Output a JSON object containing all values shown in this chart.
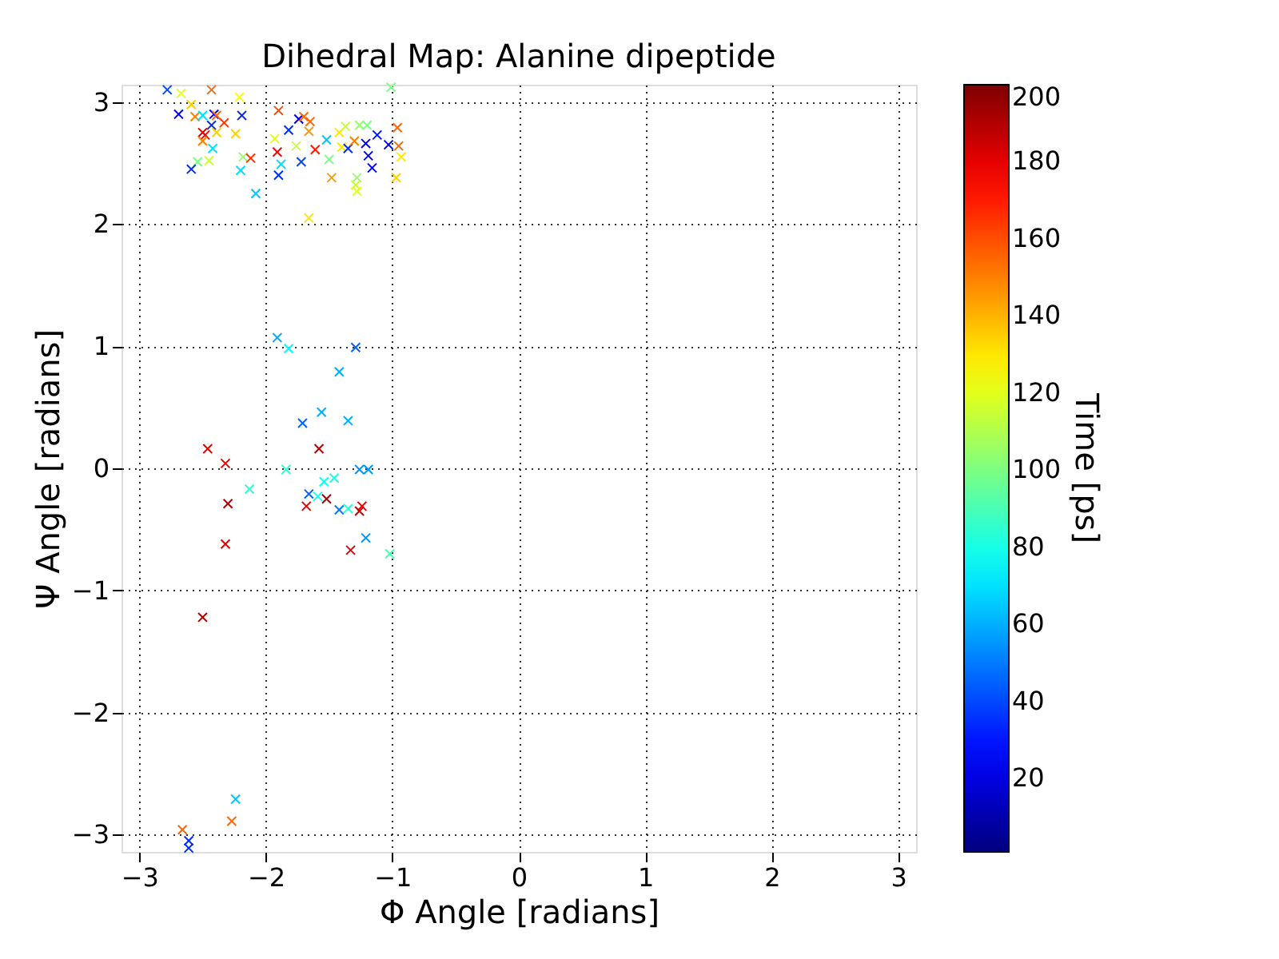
{
  "chart_data": {
    "type": "scatter",
    "title": "Dihedral Map: Alanine dipeptide",
    "xlabel": "Φ Angle [radians]",
    "ylabel": "Ψ Angle [radians]",
    "clabel": "Time [ps]",
    "x": [
      -2.78,
      -2.67,
      -2.43,
      -2.21,
      -1.01,
      -2.69,
      -2.59,
      -2.56,
      -2.5,
      -2.41,
      -2.39,
      -2.43,
      -2.33,
      -2.19,
      -2.5,
      -2.48,
      -2.39,
      -2.5,
      -2.24,
      -2.42,
      -2.54,
      -2.45,
      -2.59,
      -2.18,
      -2.12,
      -2.2,
      -2.08,
      -1.9,
      -1.82,
      -1.74,
      -1.7,
      -1.65,
      -1.66,
      -1.93,
      -1.76,
      -1.91,
      -1.88,
      -1.9,
      -1.72,
      -1.61,
      -1.52,
      -1.5,
      -1.48,
      -1.42,
      -1.37,
      -1.4,
      -1.35,
      -1.3,
      -1.26,
      -1.2,
      -1.21,
      -1.19,
      -1.12,
      -1.16,
      -1.28,
      -1.29,
      -1.28,
      -1.03,
      -0.96,
      -0.95,
      -0.93,
      -0.97,
      -1.66,
      -1.91,
      -1.82,
      -1.29,
      -1.42,
      -1.56,
      -1.71,
      -1.35,
      -2.46,
      -2.32,
      -1.58,
      -1.84,
      -2.13,
      -1.26,
      -1.19,
      -1.54,
      -1.46,
      -1.66,
      -1.59,
      -1.52,
      -1.68,
      -2.3,
      -1.42,
      -1.35,
      -1.24,
      -1.26,
      -1.21,
      -2.32,
      -1.33,
      -1.02,
      -2.5,
      -2.24,
      -2.27,
      -2.66,
      -2.61,
      -2.61
    ],
    "values": [
      3.1,
      3.07,
      3.1,
      3.04,
      3.12,
      2.9,
      2.98,
      2.88,
      2.89,
      2.9,
      2.89,
      2.81,
      2.83,
      2.89,
      2.75,
      2.73,
      2.75,
      2.68,
      2.74,
      2.62,
      2.51,
      2.52,
      2.45,
      2.55,
      2.54,
      2.44,
      2.25,
      2.93,
      2.77,
      2.86,
      2.88,
      2.84,
      2.76,
      2.7,
      2.64,
      2.59,
      2.49,
      2.4,
      2.51,
      2.61,
      2.69,
      2.53,
      2.38,
      2.75,
      2.8,
      2.63,
      2.62,
      2.68,
      2.81,
      2.81,
      2.66,
      2.56,
      2.73,
      2.46,
      2.38,
      2.32,
      2.27,
      2.65,
      2.79,
      2.64,
      2.55,
      2.38,
      2.05,
      1.07,
      0.98,
      0.99,
      0.79,
      0.46,
      0.37,
      0.39,
      0.16,
      0.04,
      0.16,
      -0.01,
      -0.17,
      -0.01,
      -0.01,
      -0.11,
      -0.08,
      -0.21,
      -0.23,
      -0.25,
      -0.31,
      -0.29,
      -0.34,
      -0.33,
      -0.31,
      -0.35,
      -0.57,
      -0.62,
      -0.67,
      -0.7,
      -1.22,
      -2.71,
      -2.89,
      -2.96,
      -3.05,
      -3.11
    ],
    "cvalues": [
      40,
      120,
      155,
      125,
      100,
      20,
      135,
      150,
      70,
      25,
      155,
      35,
      165,
      35,
      185,
      175,
      135,
      150,
      135,
      70,
      100,
      115,
      35,
      105,
      165,
      70,
      65,
      160,
      35,
      20,
      155,
      155,
      145,
      120,
      115,
      175,
      70,
      35,
      40,
      170,
      65,
      100,
      145,
      130,
      115,
      130,
      35,
      150,
      105,
      100,
      25,
      25,
      30,
      25,
      105,
      115,
      120,
      25,
      155,
      155,
      130,
      135,
      130,
      60,
      75,
      45,
      60,
      60,
      45,
      60,
      180,
      180,
      190,
      85,
      85,
      55,
      55,
      80,
      80,
      45,
      80,
      190,
      180,
      190,
      50,
      85,
      180,
      185,
      55,
      180,
      180,
      90,
      190,
      65,
      155,
      155,
      35,
      35
    ],
    "xlim": [
      -3.1416,
      3.1416
    ],
    "ylim": [
      -3.1416,
      3.1416
    ],
    "xticks": [
      {
        "value": -3,
        "label": "−3"
      },
      {
        "value": -2,
        "label": "−2"
      },
      {
        "value": -1,
        "label": "−1"
      },
      0,
      1,
      2,
      3
    ],
    "yticks": [
      {
        "value": -3,
        "label": "−3"
      },
      {
        "value": -2,
        "label": "−2"
      },
      {
        "value": -1,
        "label": "−1"
      },
      0,
      1,
      2,
      3
    ],
    "clim": [
      1,
      200
    ],
    "cticks": [
      20,
      40,
      60,
      80,
      100,
      120,
      140,
      160,
      180,
      200
    ],
    "marker": "cross",
    "grid": true
  }
}
